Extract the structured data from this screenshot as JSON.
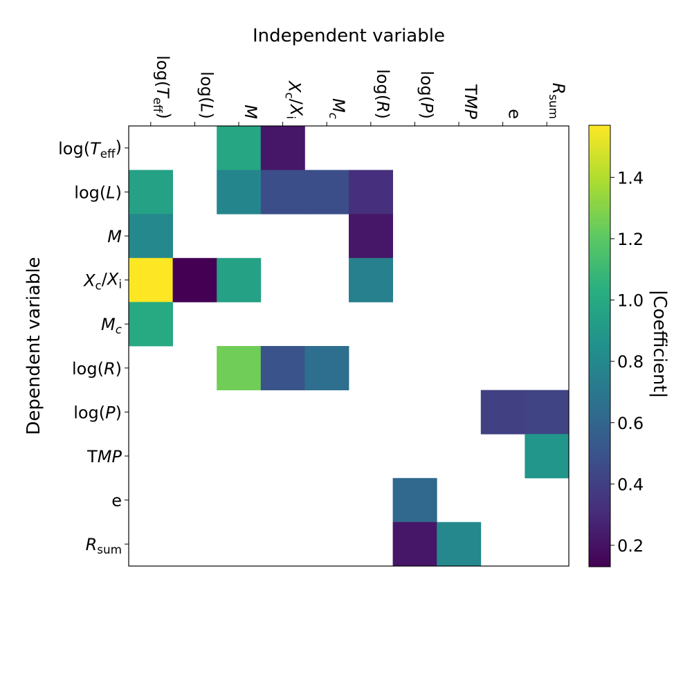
{
  "chart_data": {
    "type": "heatmap",
    "title": "Independent variable",
    "xlabel": "Independent variable",
    "ylabel": "Dependent variable",
    "colorbar_label": "|Coefficient|",
    "columns": [
      "log(T_eff)",
      "log(L)",
      "M",
      "X_c/X_i",
      "M_c",
      "log(R)",
      "log(P)",
      "TMP",
      "e",
      "R_sum"
    ],
    "rows": [
      "log(T_eff)",
      "log(L)",
      "M",
      "X_c/X_i",
      "M_c",
      "log(R)",
      "log(P)",
      "TMP",
      "e",
      "R_sum"
    ],
    "values": [
      [
        null,
        null,
        0.98,
        0.22,
        null,
        null,
        null,
        null,
        null,
        null
      ],
      [
        0.95,
        null,
        0.78,
        0.47,
        0.47,
        0.32,
        null,
        null,
        null,
        null
      ],
      [
        0.8,
        null,
        null,
        null,
        null,
        0.22,
        null,
        null,
        null,
        null
      ],
      [
        1.57,
        0.13,
        0.95,
        null,
        null,
        0.75,
        null,
        null,
        null,
        null
      ],
      [
        1.0,
        null,
        null,
        null,
        null,
        null,
        null,
        null,
        null,
        null
      ],
      [
        null,
        null,
        1.25,
        0.5,
        0.65,
        null,
        null,
        null,
        null,
        null
      ],
      [
        null,
        null,
        null,
        null,
        null,
        null,
        null,
        null,
        0.4,
        0.42
      ],
      [
        null,
        null,
        null,
        null,
        null,
        null,
        null,
        null,
        null,
        0.88
      ],
      [
        null,
        null,
        null,
        null,
        null,
        null,
        0.62,
        null,
        null,
        null
      ],
      [
        null,
        null,
        null,
        null,
        null,
        null,
        0.22,
        0.8,
        null,
        null
      ]
    ],
    "colorbar_range": [
      0.13,
      1.57
    ],
    "colorbar_ticks": [
      "0.2",
      "0.4",
      "0.6",
      "0.8",
      "1.0",
      "1.2",
      "1.4"
    ],
    "colormap": "viridis"
  }
}
